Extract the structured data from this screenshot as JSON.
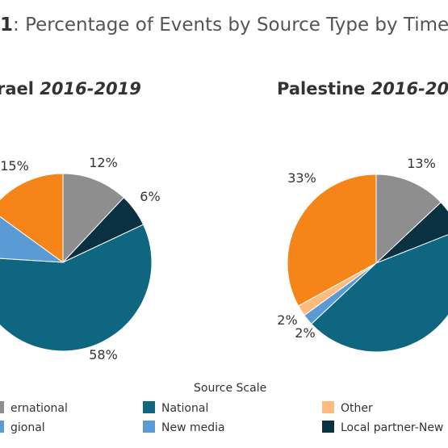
{
  "title": {
    "prefix": "1",
    "text": ": Percentage of Events by Source Type by Time"
  },
  "legend": {
    "title": "Source Scale",
    "items": [
      {
        "label": "ernational",
        "color": "#8e8e8e"
      },
      {
        "label": "gional",
        "color": "#5b9bd5"
      },
      {
        "label": "National",
        "color": "#0f6680"
      },
      {
        "label": "New media",
        "color": "#5b9bd5"
      },
      {
        "label": "Other",
        "color": "#ffbb7d"
      },
      {
        "label": "Local partner-New",
        "color": "#0a3142"
      }
    ]
  },
  "chart_data": [
    {
      "type": "pie",
      "title": "rael",
      "title_period": "2016-2019",
      "slices": [
        {
          "category": "International",
          "value": 12,
          "label": "12%",
          "color": "#8e8e8e"
        },
        {
          "category": "Local partner-New",
          "value": 6,
          "label": "6%",
          "color": "#0a3142"
        },
        {
          "category": "National",
          "value": 58,
          "label": "58%",
          "color": "#0f6680"
        },
        {
          "category": "New media",
          "value": 9,
          "label": "",
          "color": "#5b9bd5"
        },
        {
          "category": "Regional",
          "value": 15,
          "label": "15%",
          "color": "#f58518"
        }
      ]
    },
    {
      "type": "pie",
      "title": "Palestine",
      "title_period": "2016-20",
      "slices": [
        {
          "category": "International",
          "value": 13,
          "label": "13%",
          "color": "#8e8e8e"
        },
        {
          "category": "Local partner-New",
          "value": 6,
          "label": "",
          "color": "#0a3142"
        },
        {
          "category": "National",
          "value": 44,
          "label": "",
          "color": "#0f6680"
        },
        {
          "category": "New media",
          "value": 2,
          "label": "2%",
          "color": "#5b9bd5"
        },
        {
          "category": "Other",
          "value": 2,
          "label": "2%",
          "color": "#ffbb7d"
        },
        {
          "category": "Regional",
          "value": 33,
          "label": "33%",
          "color": "#f58518"
        }
      ]
    }
  ]
}
